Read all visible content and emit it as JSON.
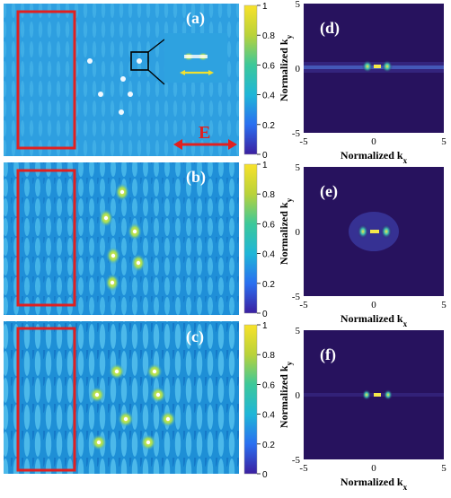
{
  "panels_left": [
    {
      "letter": "(a)"
    },
    {
      "letter": "(b)"
    },
    {
      "letter": "(c)"
    }
  ],
  "panels_right": [
    {
      "letter": "(d)"
    },
    {
      "letter": "(e)"
    },
    {
      "letter": "(f)"
    }
  ],
  "field_label": "E",
  "colorbar_ticks": [
    "1",
    "0.8",
    "0.6",
    "0.4",
    "0.2",
    "0"
  ],
  "axis": {
    "x_label": "Normalized k",
    "x_sub": "x",
    "y_label": "Normalized k",
    "y_sub": "y",
    "ticks": [
      "-5",
      "0",
      "5"
    ]
  },
  "colors": {
    "field_bg": "#2e9fe0",
    "bright": "#f5e84a",
    "dark_map": "#27125e",
    "highlight_box": "#e12020",
    "arrow": "#e12020",
    "inset_arrow": "#f0e030"
  },
  "chart_data": {
    "type": "heatmap",
    "colorbar_range": [
      0,
      1
    ],
    "colorbar_ticks": [
      0,
      0.2,
      0.4,
      0.6,
      0.8,
      1
    ],
    "k_range": [
      -5,
      5
    ]
  }
}
